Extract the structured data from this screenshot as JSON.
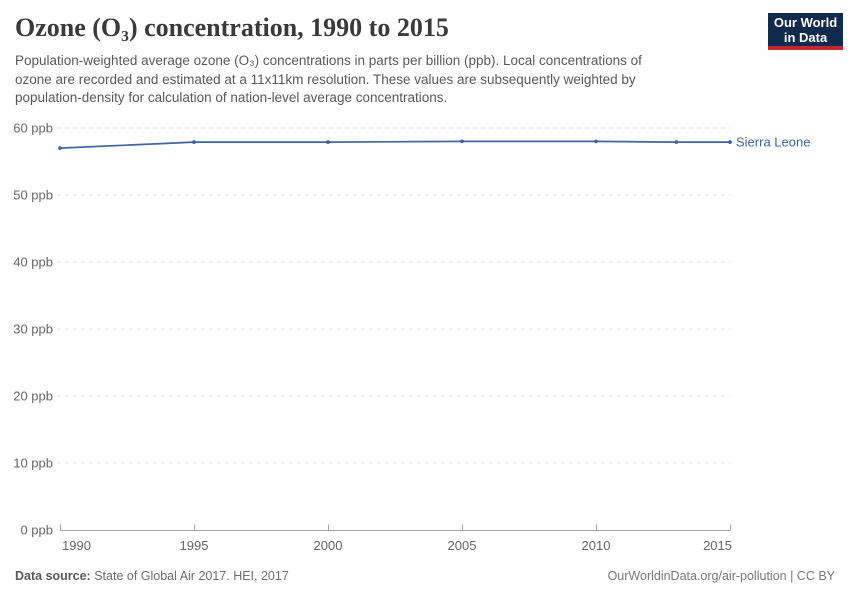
{
  "header": {
    "title": "Ozone (O₃) concentration, 1990 to 2015",
    "subtitle_lines": [
      "Population-weighted average ozone (O₃) concentrations in parts per billion (ppb). Local concentrations of",
      "ozone are recorded and estimated at a 11x11km resolution. These values are subsequently weighted by",
      "population-density for calculation of nation-level average concentrations."
    ]
  },
  "logo": {
    "line1": "Our World",
    "line2": "in Data",
    "bg_color": "#102a4e",
    "bar_color": "#c0292f",
    "text_color": "#ffffff"
  },
  "footer": {
    "source_label": "Data source:",
    "source_value": "State of Global Air 2017. HEI, 2017",
    "credit": "OurWorldinData.org/air-pollution | CC BY"
  },
  "colors": {
    "series_blue": "#4165a0",
    "grid": "#dcdcdc",
    "axis": "#a3a3a3",
    "tick_label": "#666666",
    "title": "#3a3a3a",
    "subtitle": "#595959",
    "footer": "#6e6e6e"
  },
  "chart_data": {
    "type": "line",
    "title": "Ozone (O₃) concentration, 1990 to 2015",
    "xlabel": "",
    "ylabel": "",
    "xlim": [
      1990,
      2015
    ],
    "ylim": [
      0,
      60
    ],
    "x_ticks": [
      1990,
      1995,
      2000,
      2005,
      2010,
      2015
    ],
    "y_ticks": [
      0,
      10,
      20,
      30,
      40,
      50,
      60
    ],
    "y_tick_suffix": " ppb",
    "grid": "horizontal-dashed",
    "legend_position": "label-at-line-end",
    "series": [
      {
        "name": "Sierra Leone",
        "color": "#4165a0",
        "x": [
          1990,
          1995,
          2000,
          2005,
          2010,
          2013,
          2015
        ],
        "values": [
          57.0,
          57.9,
          57.9,
          58.0,
          58.0,
          57.9,
          57.9
        ]
      }
    ]
  }
}
